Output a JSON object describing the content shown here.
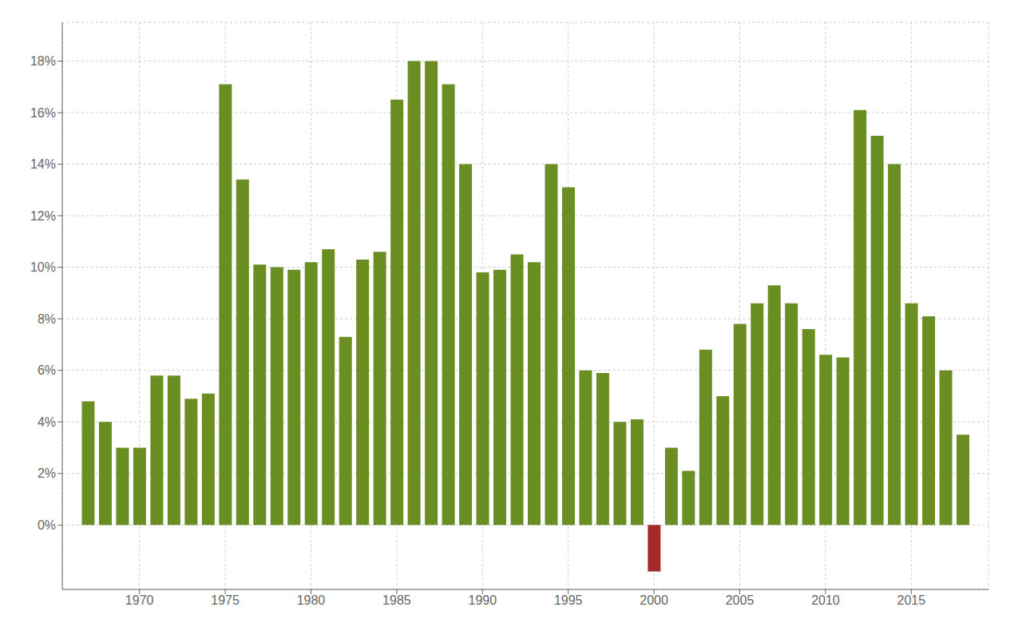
{
  "chart_data": {
    "type": "bar",
    "x": [
      1967,
      1968,
      1969,
      1970,
      1971,
      1972,
      1973,
      1974,
      1975,
      1976,
      1977,
      1978,
      1979,
      1980,
      1981,
      1982,
      1983,
      1984,
      1985,
      1986,
      1987,
      1988,
      1989,
      1990,
      1991,
      1992,
      1993,
      1994,
      1995,
      1996,
      1997,
      1998,
      1999,
      2000,
      2001,
      2002,
      2003,
      2004,
      2005,
      2006,
      2007,
      2008,
      2009,
      2010,
      2011,
      2012,
      2013,
      2014,
      2015,
      2016,
      2017,
      2018
    ],
    "values": [
      4.8,
      4.0,
      3.0,
      3.0,
      5.8,
      5.8,
      4.9,
      5.1,
      17.1,
      13.4,
      10.1,
      10.0,
      9.9,
      10.2,
      10.7,
      7.3,
      10.3,
      10.6,
      16.5,
      18.0,
      18.0,
      17.1,
      14.0,
      9.8,
      9.9,
      10.5,
      10.2,
      14.0,
      13.1,
      6.0,
      5.9,
      4.0,
      4.1,
      -1.8,
      3.0,
      2.1,
      6.8,
      5.0,
      7.8,
      8.6,
      9.3,
      8.6,
      7.6,
      6.6,
      6.5,
      16.1,
      15.1,
      14.0,
      8.6,
      8.1,
      6.0,
      3.5
    ],
    "colors": [
      "#6b8e23",
      "#6b8e23",
      "#6b8e23",
      "#6b8e23",
      "#6b8e23",
      "#6b8e23",
      "#6b8e23",
      "#6b8e23",
      "#6b8e23",
      "#6b8e23",
      "#6b8e23",
      "#6b8e23",
      "#6b8e23",
      "#6b8e23",
      "#6b8e23",
      "#6b8e23",
      "#6b8e23",
      "#6b8e23",
      "#6b8e23",
      "#6b8e23",
      "#6b8e23",
      "#6b8e23",
      "#6b8e23",
      "#6b8e23",
      "#6b8e23",
      "#6b8e23",
      "#6b8e23",
      "#6b8e23",
      "#6b8e23",
      "#6b8e23",
      "#6b8e23",
      "#6b8e23",
      "#6b8e23",
      "#a52a2a",
      "#6b8e23",
      "#6b8e23",
      "#6b8e23",
      "#6b8e23",
      "#6b8e23",
      "#6b8e23",
      "#6b8e23",
      "#6b8e23",
      "#6b8e23",
      "#6b8e23",
      "#6b8e23",
      "#6b8e23",
      "#6b8e23",
      "#6b8e23",
      "#6b8e23",
      "#6b8e23",
      "#6b8e23",
      "#6b8e23"
    ],
    "xlim": [
      1965.5,
      2019.5
    ],
    "xticks": [
      1970,
      1975,
      1980,
      1985,
      1990,
      1995,
      2000,
      2005,
      2010,
      2015
    ],
    "ylim": [
      -2.5,
      19.5
    ],
    "yticks": [
      {
        "value": 0,
        "label": "0%"
      },
      {
        "value": 2,
        "label": "2%"
      },
      {
        "value": 4,
        "label": "4%"
      },
      {
        "value": 6,
        "label": "6%"
      },
      {
        "value": 8,
        "label": "8%"
      },
      {
        "value": 10,
        "label": "10%"
      },
      {
        "value": 12,
        "label": "12%"
      },
      {
        "value": 14,
        "label": "14%"
      },
      {
        "value": 16,
        "label": "16%"
      },
      {
        "value": 18,
        "label": "18%"
      }
    ],
    "grid": true
  }
}
